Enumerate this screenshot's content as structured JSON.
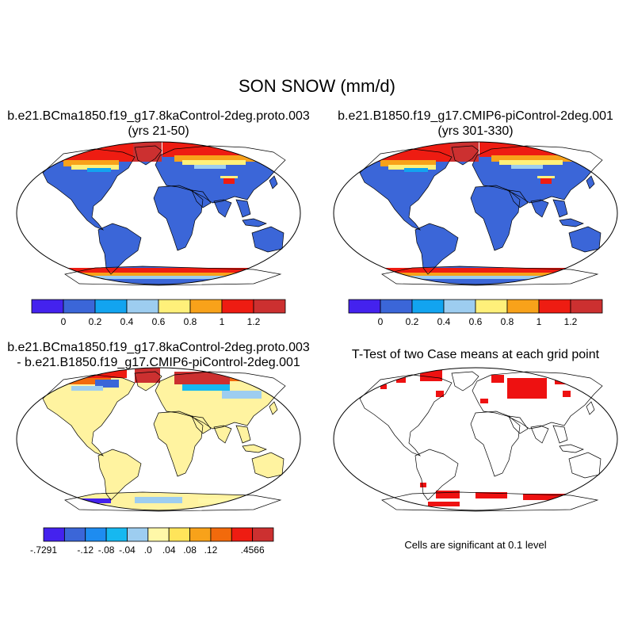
{
  "page": {
    "title": "SON SNOW (mm/d)"
  },
  "panels": {
    "top_left": {
      "title_line1": "b.e21.BCma1850.f19_g17.8kaControl-2deg.proto.003",
      "title_line2": "(yrs 21-50)"
    },
    "top_right": {
      "title_line1": "b.e21.B1850.f19_g17.CMIP6-piControl-2deg.001",
      "title_line2": "(yrs 301-330)"
    },
    "bottom_left": {
      "title_line1": "b.e21.BCma1850.f19_g17.8kaControl-2deg.proto.003",
      "title_line2": "- b.e21.B1850.f19_g17.CMIP6-piControl-2deg.001"
    },
    "bottom_right": {
      "title_line1": "T-Test of two Case means at each grid point",
      "note": "Cells are significant at 0.1 level"
    }
  },
  "colorbars": {
    "case": {
      "colors": [
        "#4422ee",
        "#3b66d8",
        "#12a4f0",
        "#9dcdf0",
        "#fff07a",
        "#f8a21a",
        "#ee1c12",
        "#cc3030"
      ],
      "labels": [
        "0",
        "0.2",
        "0.4",
        "0.6",
        "0.8",
        "1",
        "1.2"
      ]
    },
    "diff": {
      "colors": [
        "#4422ee",
        "#3b66d8",
        "#1e8cf0",
        "#16b8f0",
        "#9dcdf0",
        "#fff8a8",
        "#ffe45a",
        "#f8a21a",
        "#f26a0c",
        "#ee1c12",
        "#cc3030"
      ],
      "labels": [
        "-.7291",
        "-.12",
        "-.08",
        "-.04",
        ".0",
        ".04",
        ".08",
        ".12",
        ".4566"
      ],
      "label_boundaries": [
        0,
        2,
        3,
        4,
        5,
        6,
        7,
        8,
        10
      ]
    }
  },
  "colors": {
    "ocean": "#ffffff",
    "land_case": "#3b66d8",
    "land_diff": "#fff3a0",
    "significant": "#ee1111",
    "coast": "#000000"
  }
}
